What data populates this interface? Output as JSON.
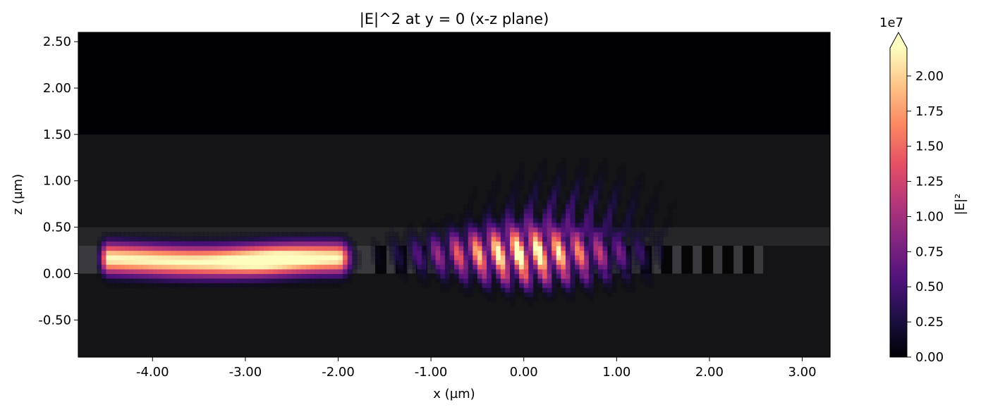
{
  "chart_data": {
    "type": "heatmap",
    "title": "|E|^2 at y = 0 (x-z plane)",
    "xlabel": "x (µm)",
    "ylabel": "z (µm)",
    "xlim": [
      -4.8,
      3.3
    ],
    "ylim": [
      -0.9,
      2.6
    ],
    "xticks": [
      -4.0,
      -3.0,
      -2.0,
      -1.0,
      0.0,
      1.0,
      2.0,
      3.0
    ],
    "xtick_labels": [
      "-4.00",
      "-3.00",
      "-2.00",
      "-1.00",
      "0.00",
      "1.00",
      "2.00",
      "3.00"
    ],
    "yticks": [
      -0.5,
      0.0,
      0.5,
      1.0,
      1.5,
      2.0,
      2.5
    ],
    "ytick_labels": [
      "-0.50",
      "0.00",
      "0.50",
      "1.00",
      "1.50",
      "2.00",
      "2.50"
    ],
    "colormap": "magma",
    "colorbar": {
      "label": "|E|²",
      "offset_text": "1e7",
      "range": [
        0,
        2.2
      ],
      "extend": "max",
      "ticks": [
        0.0,
        0.25,
        0.5,
        0.75,
        1.0,
        1.25,
        1.5,
        1.75,
        2.0
      ],
      "tick_labels": [
        "0.00",
        "0.25",
        "0.50",
        "0.75",
        "1.00",
        "1.25",
        "1.50",
        "1.75",
        "2.00"
      ]
    },
    "structure": {
      "cladding_z": [
        -0.9,
        1.5
      ],
      "waveguide_core_z": [
        0.0,
        0.3
      ],
      "waveguide_cap_z": [
        0.3,
        0.5
      ],
      "input_waveguide_x": [
        -4.8,
        -1.7
      ],
      "grating_x": [
        -1.7,
        2.55
      ],
      "grating_period": 0.22
    },
    "field": {
      "input_mode": {
        "x_range": [
          -4.6,
          -2.0
        ],
        "z_center": 0.15,
        "peak": 2.2
      },
      "grating_emission": {
        "x_range": [
          -1.65,
          1.0
        ],
        "peak_x": 0.0,
        "peak": 2.4,
        "fringe_period": 0.22,
        "tilt_per_um": 0.25
      },
      "radiation_lobes": {
        "x_range": [
          -0.8,
          1.7
        ],
        "z_range": [
          0.5,
          1.6
        ]
      }
    },
    "legend": null,
    "grid": false
  }
}
